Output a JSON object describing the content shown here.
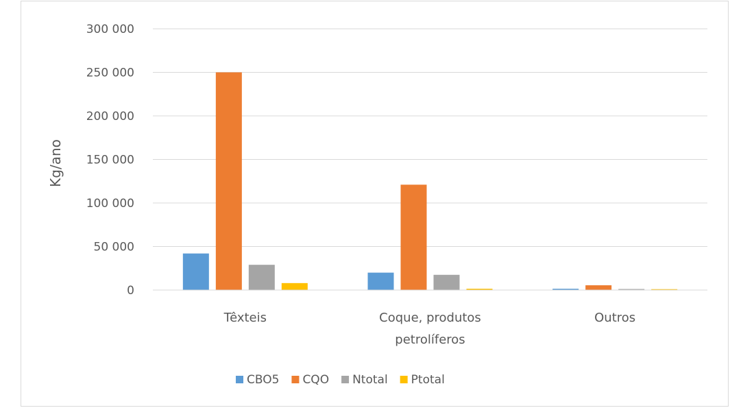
{
  "chart_data": {
    "type": "bar",
    "title": "",
    "xlabel": "",
    "ylabel": "Kg/ano",
    "ylim": [
      0,
      300000
    ],
    "yticks": [
      0,
      50000,
      100000,
      150000,
      200000,
      250000,
      300000
    ],
    "ytick_labels": [
      "0",
      "50 000",
      "100 000",
      "150 000",
      "200 000",
      "250 000",
      "300 000"
    ],
    "grid": true,
    "legend_position": "bottom",
    "categories": [
      [
        "Têxteis"
      ],
      [
        "Coque, produtos",
        "petrolíferos"
      ],
      [
        "Outros"
      ]
    ],
    "series": [
      {
        "name": "CBO5",
        "color": "#5b9bd5",
        "values": [
          42000,
          20000,
          1500
        ]
      },
      {
        "name": "CQO",
        "color": "#ed7d31",
        "values": [
          250000,
          121000,
          5500
        ]
      },
      {
        "name": "Ntotal",
        "color": "#a5a5a5",
        "values": [
          29000,
          17500,
          1200
        ]
      },
      {
        "name": "Ptotal",
        "color": "#ffc000",
        "values": [
          8000,
          1500,
          1000
        ]
      }
    ]
  }
}
